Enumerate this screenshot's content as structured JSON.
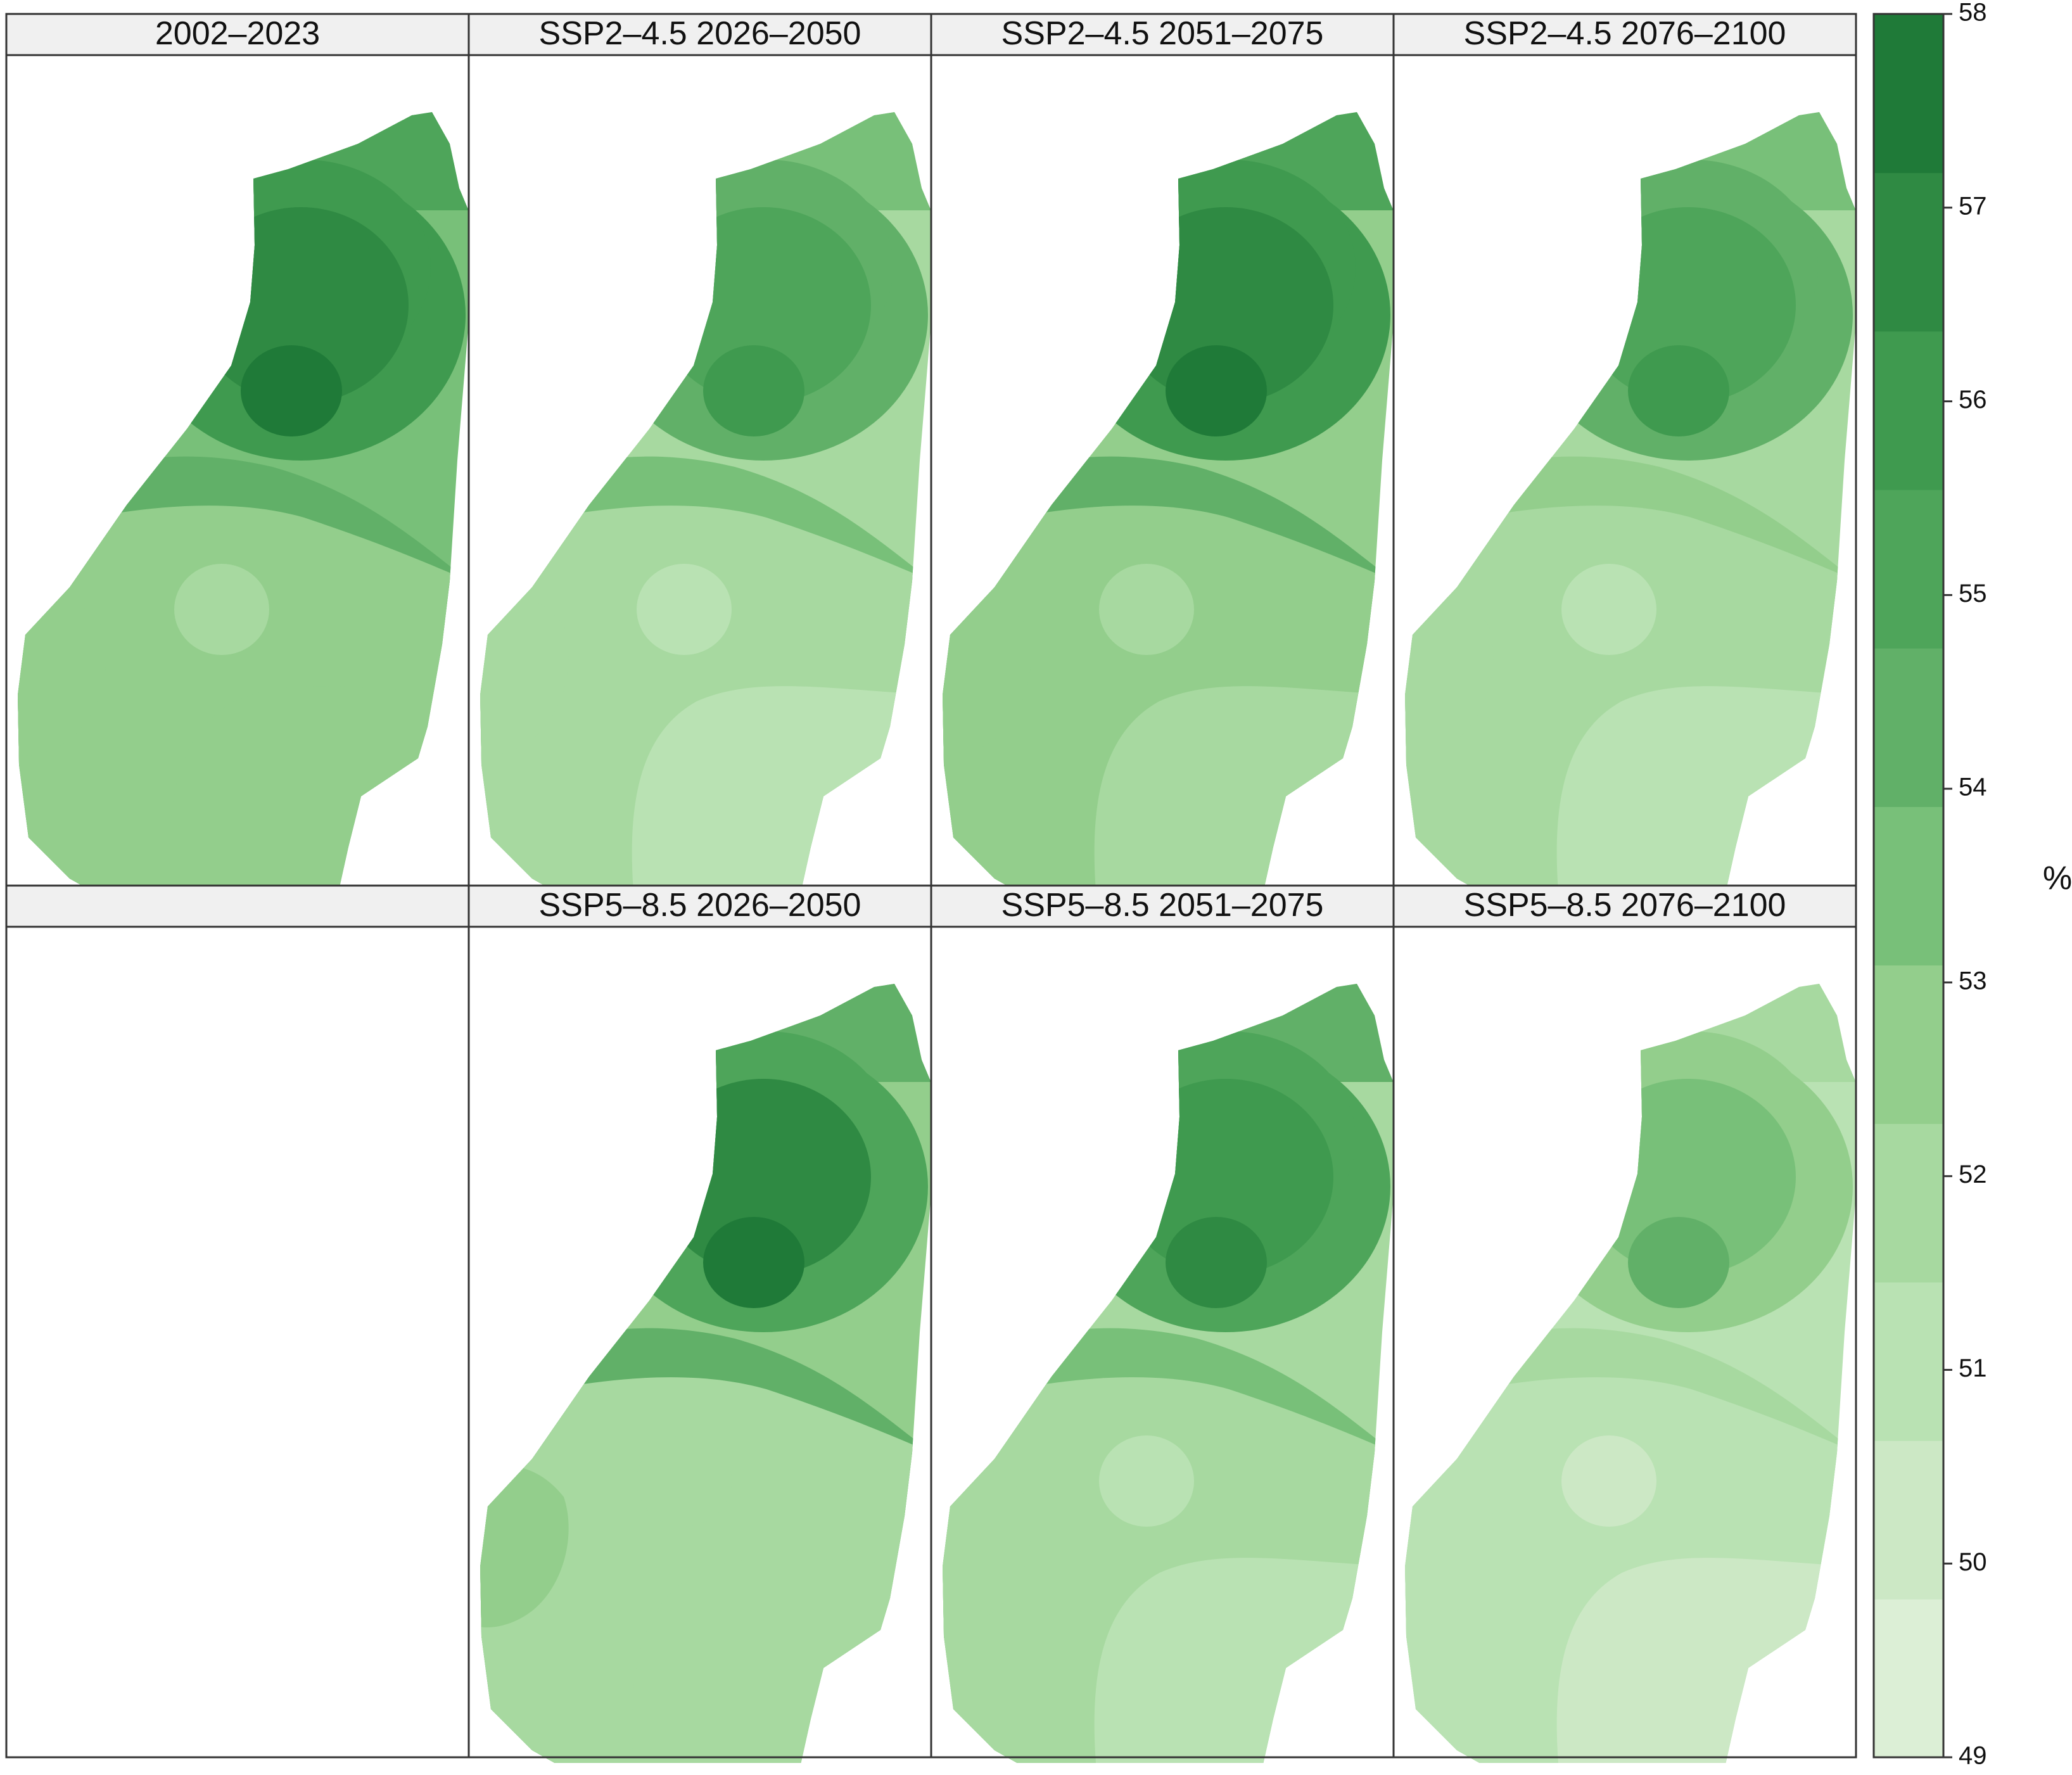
{
  "legend": {
    "unit": "%",
    "min": 49,
    "max": 58,
    "ticks": [
      "58",
      "57",
      "56",
      "55",
      "54",
      "53",
      "52",
      "51",
      "50",
      "49"
    ],
    "colors": [
      "#dcefd6",
      "#cce8c5",
      "#b9e2b3",
      "#a7d9a0",
      "#93ce8c",
      "#78c079",
      "#61b068",
      "#4ea55a",
      "#3f9a4f",
      "#2f8a43",
      "#1f7a38"
    ]
  },
  "panels": [
    {
      "title": "2002–2023",
      "levels": {
        "outer": 5,
        "north": 7,
        "upper": 8,
        "core": 9,
        "mid": 6,
        "south": 4,
        "southeast": 4,
        "southwest": 4,
        "spot": 3
      }
    },
    {
      "title": "SSP2–4.5 2026–2050",
      "levels": {
        "outer": 3,
        "north": 5,
        "upper": 6,
        "core": 7,
        "mid": 5,
        "south": 3,
        "southeast": 2,
        "southwest": 3,
        "spot": 2
      }
    },
    {
      "title": "SSP2–4.5 2051–2075",
      "levels": {
        "outer": 4,
        "north": 7,
        "upper": 8,
        "core": 9,
        "mid": 6,
        "south": 4,
        "southeast": 3,
        "southwest": 4,
        "spot": 3
      }
    },
    {
      "title": "SSP2–4.5 2076–2100",
      "levels": {
        "outer": 3,
        "north": 5,
        "upper": 6,
        "core": 7,
        "mid": 4,
        "south": 3,
        "southeast": 2,
        "southwest": 3,
        "spot": 2
      }
    },
    {
      "title": "",
      "levels": null
    },
    {
      "title": "SSP5–8.5 2026–2050",
      "levels": {
        "outer": 4,
        "north": 6,
        "upper": 7,
        "core": 9,
        "mid": 6,
        "south": 3,
        "southeast": 3,
        "southwest": 4,
        "spot": 3
      }
    },
    {
      "title": "SSP5–8.5 2051–2075",
      "levels": {
        "outer": 3,
        "north": 6,
        "upper": 7,
        "core": 8,
        "mid": 5,
        "south": 3,
        "southeast": 2,
        "southwest": 3,
        "spot": 2
      }
    },
    {
      "title": "SSP5–8.5 2076–2100",
      "levels": {
        "outer": 2,
        "north": 3,
        "upper": 4,
        "core": 5,
        "mid": 3,
        "south": 2,
        "southeast": 1,
        "southwest": 2,
        "spot": 1
      }
    }
  ]
}
